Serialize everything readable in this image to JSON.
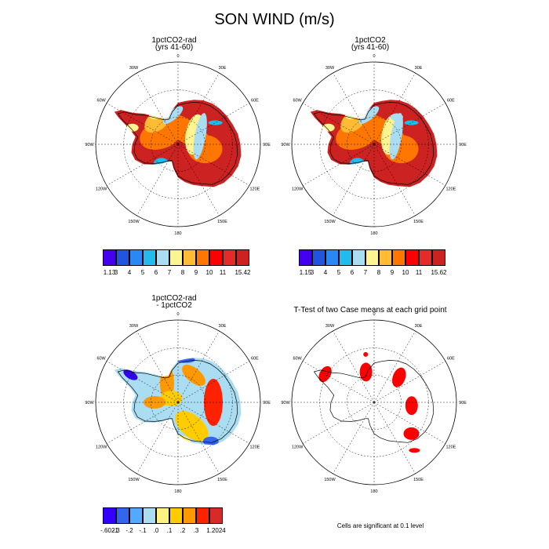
{
  "title": "SON WIND (m/s)",
  "labels": [
    "0",
    "30E",
    "60E",
    "90E",
    "120E",
    "150E",
    "180",
    "150W",
    "120W",
    "90W",
    "60W",
    "30W"
  ],
  "panels": [
    {
      "title_line1": "1pctCO2-rad",
      "title_line2": "(yrs 41-60)",
      "kind": "field",
      "scheme": "wind"
    },
    {
      "title_line1": "1pctCO2",
      "title_line2": "(yrs 41-60)",
      "kind": "field",
      "scheme": "wind"
    },
    {
      "title_line1": "1pctCO2-rad",
      "title_line2": "- 1pctCO2",
      "kind": "field",
      "scheme": "diff"
    },
    {
      "title_line1": "T-Test of two Case means at each grid point",
      "title_line2": "",
      "kind": "ttest",
      "scheme": "sig"
    }
  ],
  "colorbars": [
    {
      "labels": [
        "1.13",
        "3",
        "4",
        "5",
        "6",
        "7",
        "8",
        "9",
        "10",
        "11",
        "15.42"
      ],
      "colors": [
        "#4400ee",
        "#2255dd",
        "#2a88f5",
        "#22bbee",
        "#aaddf2",
        "#fff590",
        "#ffbb33",
        "#ff7700",
        "#ff0000",
        "#e62a2a",
        "#cc2222"
      ]
    },
    {
      "labels": [
        "1.15",
        "3",
        "4",
        "5",
        "6",
        "7",
        "8",
        "9",
        "10",
        "11",
        "15.62"
      ],
      "colors": [
        "#4400ee",
        "#2255dd",
        "#2a88f5",
        "#22bbee",
        "#aaddf2",
        "#fff590",
        "#ffbb33",
        "#ff7700",
        "#ff0000",
        "#e62a2a",
        "#cc2222"
      ]
    },
    {
      "labels": [
        "-.6021",
        "-.3",
        "-.2",
        "-.1",
        ".0",
        ".1",
        ".2",
        ".3",
        "1.2024"
      ],
      "colors": [
        "#3300ff",
        "#3366ee",
        "#55aaff",
        "#aaddf2",
        "#fff280",
        "#ffcc00",
        "#ff9900",
        "#ff2200",
        "#d92a2a"
      ]
    }
  ],
  "note": "Cells are significant at 0.1 level",
  "sig_color": "#ff0000"
}
